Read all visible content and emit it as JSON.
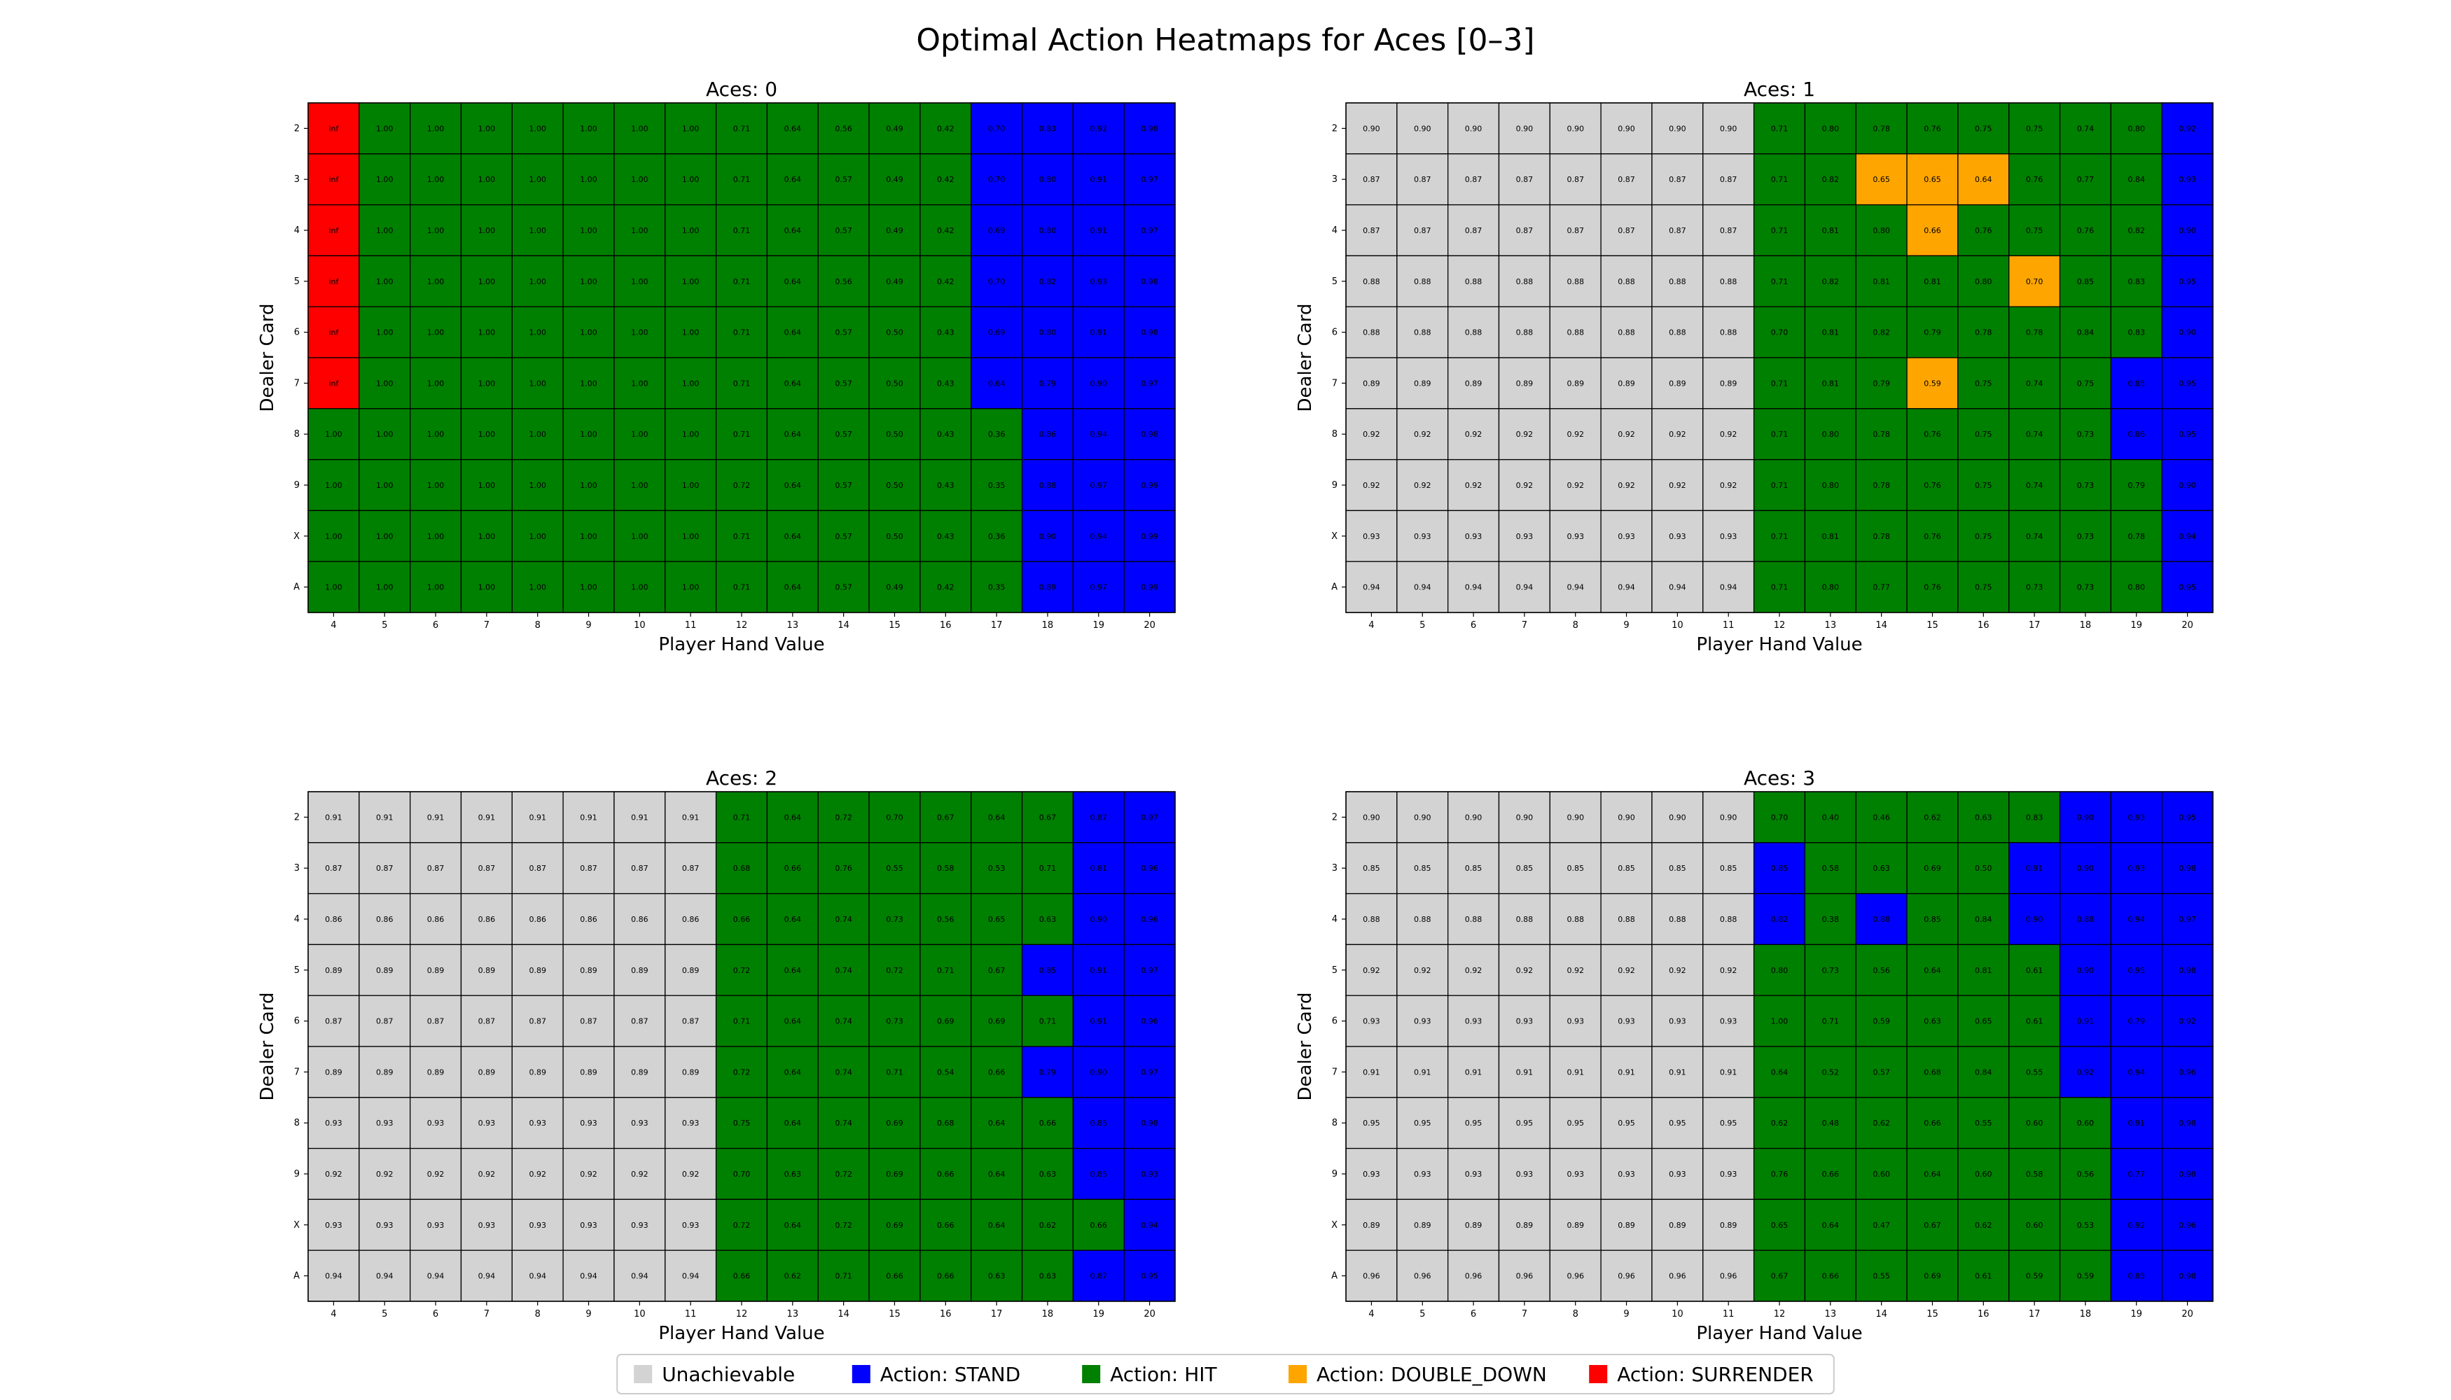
{
  "figure": {
    "title": "Optimal Action Heatmaps for Aces [0–3]"
  },
  "colors": {
    "STAND": "#0000ff",
    "HIT": "#008000",
    "DOUBLE_DOWN": "#ffa500",
    "SURRENDER": "#ff0000",
    "UNACHIEVABLE": "#d3d3d3"
  },
  "legend": {
    "position": "bottom-center",
    "items": [
      {
        "key": "UNACHIEVABLE",
        "label": "Unachievable"
      },
      {
        "key": "STAND",
        "label": "Action: STAND"
      },
      {
        "key": "HIT",
        "label": "Action: HIT"
      },
      {
        "key": "DOUBLE_DOWN",
        "label": "Action: DOUBLE_DOWN"
      },
      {
        "key": "SURRENDER",
        "label": "Action: SURRENDER"
      }
    ]
  },
  "chart_data": [
    {
      "type": "heatmap",
      "title": "Aces: 0",
      "xlabel": "Player Hand Value",
      "ylabel": "Dealer Card",
      "x": [
        "4",
        "5",
        "6",
        "7",
        "8",
        "9",
        "10",
        "11",
        "12",
        "13",
        "14",
        "15",
        "16",
        "17",
        "18",
        "19",
        "20"
      ],
      "y": [
        "2",
        "3",
        "4",
        "5",
        "6",
        "7",
        "8",
        "9",
        "X",
        "A"
      ],
      "codes": {
        "U": "UNACHIEVABLE",
        "S": "STAND",
        "H": "HIT",
        "D": "DOUBLE_DOWN",
        "R": "SURRENDER"
      },
      "actions": [
        "RHHHHHHHHHHHHSSSS",
        "RHHHHHHHHHHHHSSSS",
        "RHHHHHHHHHHHHSSSS",
        "RHHHHHHHHHHHHSSSS",
        "RHHHHHHHHHHHHSSSS",
        "RHHHHHHHHHHHHSSSS",
        "HHHHHHHHHHHHHHSSS",
        "HHHHHHHHHHHHHHSSS",
        "HHHHHHHHHHHHHHSSS",
        "HHHHHHHHHHHHHHSSS"
      ],
      "values": [
        [
          "inf",
          "1.00",
          "1.00",
          "1.00",
          "1.00",
          "1.00",
          "1.00",
          "1.00",
          "0.71",
          "0.64",
          "0.56",
          "0.49",
          "0.42",
          "0.70",
          "0.83",
          "0.92",
          "0.98"
        ],
        [
          "inf",
          "1.00",
          "1.00",
          "1.00",
          "1.00",
          "1.00",
          "1.00",
          "1.00",
          "0.71",
          "0.64",
          "0.57",
          "0.49",
          "0.42",
          "0.70",
          "0.80",
          "0.91",
          "0.97"
        ],
        [
          "inf",
          "1.00",
          "1.00",
          "1.00",
          "1.00",
          "1.00",
          "1.00",
          "1.00",
          "0.71",
          "0.64",
          "0.57",
          "0.49",
          "0.42",
          "0.69",
          "0.80",
          "0.91",
          "0.97"
        ],
        [
          "inf",
          "1.00",
          "1.00",
          "1.00",
          "1.00",
          "1.00",
          "1.00",
          "1.00",
          "0.71",
          "0.64",
          "0.56",
          "0.49",
          "0.42",
          "0.70",
          "0.82",
          "0.93",
          "0.98"
        ],
        [
          "inf",
          "1.00",
          "1.00",
          "1.00",
          "1.00",
          "1.00",
          "1.00",
          "1.00",
          "0.71",
          "0.64",
          "0.57",
          "0.50",
          "0.43",
          "0.69",
          "0.80",
          "0.91",
          "0.98"
        ],
        [
          "inf",
          "1.00",
          "1.00",
          "1.00",
          "1.00",
          "1.00",
          "1.00",
          "1.00",
          "0.71",
          "0.64",
          "0.57",
          "0.50",
          "0.43",
          "0.64",
          "0.79",
          "0.90",
          "0.97"
        ],
        [
          "1.00",
          "1.00",
          "1.00",
          "1.00",
          "1.00",
          "1.00",
          "1.00",
          "1.00",
          "0.71",
          "0.64",
          "0.57",
          "0.50",
          "0.43",
          "0.36",
          "0.86",
          "0.94",
          "0.98"
        ],
        [
          "1.00",
          "1.00",
          "1.00",
          "1.00",
          "1.00",
          "1.00",
          "1.00",
          "1.00",
          "0.72",
          "0.64",
          "0.57",
          "0.50",
          "0.43",
          "0.35",
          "0.88",
          "0.97",
          "0.99"
        ],
        [
          "1.00",
          "1.00",
          "1.00",
          "1.00",
          "1.00",
          "1.00",
          "1.00",
          "1.00",
          "0.71",
          "0.64",
          "0.57",
          "0.50",
          "0.43",
          "0.36",
          "0.90",
          "0.94",
          "0.99"
        ],
        [
          "1.00",
          "1.00",
          "1.00",
          "1.00",
          "1.00",
          "1.00",
          "1.00",
          "1.00",
          "0.71",
          "0.64",
          "0.57",
          "0.49",
          "0.42",
          "0.35",
          "0.89",
          "0.97",
          "0.99"
        ]
      ]
    },
    {
      "type": "heatmap",
      "title": "Aces: 1",
      "xlabel": "Player Hand Value",
      "ylabel": "Dealer Card",
      "x": [
        "4",
        "5",
        "6",
        "7",
        "8",
        "9",
        "10",
        "11",
        "12",
        "13",
        "14",
        "15",
        "16",
        "17",
        "18",
        "19",
        "20"
      ],
      "y": [
        "2",
        "3",
        "4",
        "5",
        "6",
        "7",
        "8",
        "9",
        "X",
        "A"
      ],
      "codes": {
        "U": "UNACHIEVABLE",
        "S": "STAND",
        "H": "HIT",
        "D": "DOUBLE_DOWN",
        "R": "SURRENDER"
      },
      "actions": [
        "UUUUUUUUHHHHHHHHS",
        "UUUUUUUUHHDDDHHHS",
        "UUUUUUUUHHHDHHHHS",
        "UUUUUUUUHHHHHDHHS",
        "UUUUUUUUHHHHHHHHS",
        "UUUUUUUUHHHDHHHSS",
        "UUUUUUUUHHHHHHHSS",
        "UUUUUUUUHHHHHHHHS",
        "UUUUUUUUHHHHHHHHS",
        "UUUUUUUUHHHHHHHHS"
      ],
      "values": [
        [
          "0.90",
          "0.90",
          "0.90",
          "0.90",
          "0.90",
          "0.90",
          "0.90",
          "0.90",
          "0.71",
          "0.80",
          "0.78",
          "0.76",
          "0.75",
          "0.75",
          "0.74",
          "0.80",
          "0.92"
        ],
        [
          "0.87",
          "0.87",
          "0.87",
          "0.87",
          "0.87",
          "0.87",
          "0.87",
          "0.87",
          "0.71",
          "0.82",
          "0.65",
          "0.65",
          "0.64",
          "0.76",
          "0.77",
          "0.84",
          "0.93"
        ],
        [
          "0.87",
          "0.87",
          "0.87",
          "0.87",
          "0.87",
          "0.87",
          "0.87",
          "0.87",
          "0.71",
          "0.81",
          "0.80",
          "0.66",
          "0.76",
          "0.75",
          "0.76",
          "0.82",
          "0.90"
        ],
        [
          "0.88",
          "0.88",
          "0.88",
          "0.88",
          "0.88",
          "0.88",
          "0.88",
          "0.88",
          "0.71",
          "0.82",
          "0.81",
          "0.81",
          "0.80",
          "0.70",
          "0.85",
          "0.83",
          "0.95"
        ],
        [
          "0.88",
          "0.88",
          "0.88",
          "0.88",
          "0.88",
          "0.88",
          "0.88",
          "0.88",
          "0.70",
          "0.81",
          "0.82",
          "0.79",
          "0.78",
          "0.78",
          "0.84",
          "0.83",
          "0.90"
        ],
        [
          "0.89",
          "0.89",
          "0.89",
          "0.89",
          "0.89",
          "0.89",
          "0.89",
          "0.89",
          "0.71",
          "0.81",
          "0.79",
          "0.59",
          "0.75",
          "0.74",
          "0.75",
          "0.85",
          "0.95"
        ],
        [
          "0.92",
          "0.92",
          "0.92",
          "0.92",
          "0.92",
          "0.92",
          "0.92",
          "0.92",
          "0.71",
          "0.80",
          "0.78",
          "0.76",
          "0.75",
          "0.74",
          "0.73",
          "0.86",
          "0.95"
        ],
        [
          "0.92",
          "0.92",
          "0.92",
          "0.92",
          "0.92",
          "0.92",
          "0.92",
          "0.92",
          "0.71",
          "0.80",
          "0.78",
          "0.76",
          "0.75",
          "0.74",
          "0.73",
          "0.79",
          "0.90"
        ],
        [
          "0.93",
          "0.93",
          "0.93",
          "0.93",
          "0.93",
          "0.93",
          "0.93",
          "0.93",
          "0.71",
          "0.81",
          "0.78",
          "0.76",
          "0.75",
          "0.74",
          "0.73",
          "0.78",
          "0.94"
        ],
        [
          "0.94",
          "0.94",
          "0.94",
          "0.94",
          "0.94",
          "0.94",
          "0.94",
          "0.94",
          "0.71",
          "0.80",
          "0.77",
          "0.76",
          "0.75",
          "0.73",
          "0.73",
          "0.80",
          "0.95"
        ]
      ]
    },
    {
      "type": "heatmap",
      "title": "Aces: 2",
      "xlabel": "Player Hand Value",
      "ylabel": "Dealer Card",
      "x": [
        "4",
        "5",
        "6",
        "7",
        "8",
        "9",
        "10",
        "11",
        "12",
        "13",
        "14",
        "15",
        "16",
        "17",
        "18",
        "19",
        "20"
      ],
      "y": [
        "2",
        "3",
        "4",
        "5",
        "6",
        "7",
        "8",
        "9",
        "X",
        "A"
      ],
      "codes": {
        "U": "UNACHIEVABLE",
        "S": "STAND",
        "H": "HIT",
        "D": "DOUBLE_DOWN",
        "R": "SURRENDER"
      },
      "actions": [
        "UUUUUUUUHHHHHHHSS",
        "UUUUUUUUHHHHHHHSS",
        "UUUUUUUUHHHHHHHSS",
        "UUUUUUUUHHHHHHSSS",
        "UUUUUUUUHHHHHHHSS",
        "UUUUUUUUHHHHHHSSS",
        "UUUUUUUUHHHHHHHSS",
        "UUUUUUUUHHHHHHHSS",
        "UUUUUUUUHHHHHHHHS",
        "UUUUUUUUHHHHHHHSS"
      ],
      "values": [
        [
          "0.91",
          "0.91",
          "0.91",
          "0.91",
          "0.91",
          "0.91",
          "0.91",
          "0.91",
          "0.71",
          "0.64",
          "0.72",
          "0.70",
          "0.67",
          "0.64",
          "0.67",
          "0.87",
          "0.97"
        ],
        [
          "0.87",
          "0.87",
          "0.87",
          "0.87",
          "0.87",
          "0.87",
          "0.87",
          "0.87",
          "0.68",
          "0.66",
          "0.76",
          "0.55",
          "0.58",
          "0.53",
          "0.71",
          "0.81",
          "0.96"
        ],
        [
          "0.86",
          "0.86",
          "0.86",
          "0.86",
          "0.86",
          "0.86",
          "0.86",
          "0.86",
          "0.66",
          "0.64",
          "0.74",
          "0.73",
          "0.56",
          "0.65",
          "0.63",
          "0.90",
          "0.96"
        ],
        [
          "0.89",
          "0.89",
          "0.89",
          "0.89",
          "0.89",
          "0.89",
          "0.89",
          "0.89",
          "0.72",
          "0.64",
          "0.74",
          "0.72",
          "0.71",
          "0.67",
          "0.85",
          "0.91",
          "0.97"
        ],
        [
          "0.87",
          "0.87",
          "0.87",
          "0.87",
          "0.87",
          "0.87",
          "0.87",
          "0.87",
          "0.71",
          "0.64",
          "0.74",
          "0.73",
          "0.69",
          "0.69",
          "0.71",
          "0.91",
          "0.96"
        ],
        [
          "0.89",
          "0.89",
          "0.89",
          "0.89",
          "0.89",
          "0.89",
          "0.89",
          "0.89",
          "0.72",
          "0.64",
          "0.74",
          "0.71",
          "0.54",
          "0.66",
          "0.79",
          "0.90",
          "0.97"
        ],
        [
          "0.93",
          "0.93",
          "0.93",
          "0.93",
          "0.93",
          "0.93",
          "0.93",
          "0.93",
          "0.75",
          "0.64",
          "0.74",
          "0.69",
          "0.68",
          "0.64",
          "0.66",
          "0.85",
          "0.98"
        ],
        [
          "0.92",
          "0.92",
          "0.92",
          "0.92",
          "0.92",
          "0.92",
          "0.92",
          "0.92",
          "0.70",
          "0.63",
          "0.72",
          "0.69",
          "0.66",
          "0.64",
          "0.63",
          "0.85",
          "0.93"
        ],
        [
          "0.93",
          "0.93",
          "0.93",
          "0.93",
          "0.93",
          "0.93",
          "0.93",
          "0.93",
          "0.72",
          "0.64",
          "0.72",
          "0.69",
          "0.66",
          "0.64",
          "0.62",
          "0.66",
          "0.94"
        ],
        [
          "0.94",
          "0.94",
          "0.94",
          "0.94",
          "0.94",
          "0.94",
          "0.94",
          "0.94",
          "0.66",
          "0.62",
          "0.71",
          "0.66",
          "0.66",
          "0.63",
          "0.63",
          "0.87",
          "0.95"
        ]
      ]
    },
    {
      "type": "heatmap",
      "title": "Aces: 3",
      "xlabel": "Player Hand Value",
      "ylabel": "Dealer Card",
      "x": [
        "4",
        "5",
        "6",
        "7",
        "8",
        "9",
        "10",
        "11",
        "12",
        "13",
        "14",
        "15",
        "16",
        "17",
        "18",
        "19",
        "20"
      ],
      "y": [
        "2",
        "3",
        "4",
        "5",
        "6",
        "7",
        "8",
        "9",
        "X",
        "A"
      ],
      "codes": {
        "U": "UNACHIEVABLE",
        "S": "STAND",
        "H": "HIT",
        "D": "DOUBLE_DOWN",
        "R": "SURRENDER"
      },
      "actions": [
        "UUUUUUUUHHHHHHSSS",
        "UUUUUUUUSHHHHSSSS",
        "UUUUUUUUSHSHHSSSS",
        "UUUUUUUUHHHHHHSSS",
        "UUUUUUUUHHHHHHSSS",
        "UUUUUUUUHHHHHHSSS",
        "UUUUUUUUHHHHHHHSS",
        "UUUUUUUUHHHHHHHSS",
        "UUUUUUUUHHHHHHHSS",
        "UUUUUUUUHHHHHHHSS"
      ],
      "values": [
        [
          "0.90",
          "0.90",
          "0.90",
          "0.90",
          "0.90",
          "0.90",
          "0.90",
          "0.90",
          "0.70",
          "0.40",
          "0.46",
          "0.62",
          "0.63",
          "0.83",
          "0.90",
          "0.93",
          "0.95"
        ],
        [
          "0.85",
          "0.85",
          "0.85",
          "0.85",
          "0.85",
          "0.85",
          "0.85",
          "0.85",
          "0.85",
          "0.58",
          "0.63",
          "0.69",
          "0.50",
          "0.91",
          "0.90",
          "0.93",
          "0.98"
        ],
        [
          "0.88",
          "0.88",
          "0.88",
          "0.88",
          "0.88",
          "0.88",
          "0.88",
          "0.88",
          "0.82",
          "0.38",
          "0.88",
          "0.85",
          "0.84",
          "0.90",
          "0.88",
          "0.94",
          "0.97"
        ],
        [
          "0.92",
          "0.92",
          "0.92",
          "0.92",
          "0.92",
          "0.92",
          "0.92",
          "0.92",
          "0.80",
          "0.73",
          "0.56",
          "0.64",
          "0.81",
          "0.61",
          "0.90",
          "0.95",
          "0.98"
        ],
        [
          "0.93",
          "0.93",
          "0.93",
          "0.93",
          "0.93",
          "0.93",
          "0.93",
          "0.93",
          "1.00",
          "0.71",
          "0.59",
          "0.63",
          "0.65",
          "0.61",
          "0.91",
          "0.79",
          "0.92"
        ],
        [
          "0.91",
          "0.91",
          "0.91",
          "0.91",
          "0.91",
          "0.91",
          "0.91",
          "0.91",
          "0.64",
          "0.52",
          "0.57",
          "0.68",
          "0.84",
          "0.55",
          "0.92",
          "0.94",
          "0.96"
        ],
        [
          "0.95",
          "0.95",
          "0.95",
          "0.95",
          "0.95",
          "0.95",
          "0.95",
          "0.95",
          "0.62",
          "0.48",
          "0.62",
          "0.66",
          "0.55",
          "0.60",
          "0.60",
          "0.91",
          "0.98"
        ],
        [
          "0.93",
          "0.93",
          "0.93",
          "0.93",
          "0.93",
          "0.93",
          "0.93",
          "0.93",
          "0.76",
          "0.66",
          "0.60",
          "0.64",
          "0.60",
          "0.58",
          "0.56",
          "0.77",
          "0.98"
        ],
        [
          "0.89",
          "0.89",
          "0.89",
          "0.89",
          "0.89",
          "0.89",
          "0.89",
          "0.89",
          "0.65",
          "0.64",
          "0.47",
          "0.67",
          "0.62",
          "0.60",
          "0.53",
          "0.92",
          "0.96"
        ],
        [
          "0.96",
          "0.96",
          "0.96",
          "0.96",
          "0.96",
          "0.96",
          "0.96",
          "0.96",
          "0.67",
          "0.66",
          "0.55",
          "0.69",
          "0.61",
          "0.59",
          "0.59",
          "0.85",
          "0.98"
        ]
      ]
    }
  ]
}
